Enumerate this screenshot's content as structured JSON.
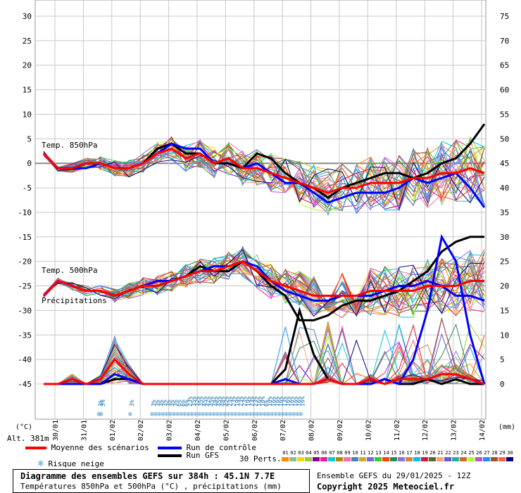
{
  "chart_data": {
    "type": "line",
    "title": "Diagramme des ensembles GEFS sur 384h : 45.1N 7.7E",
    "subtitle": "Températures 850hPa et 500hPa (°C) , précipitations (mm)",
    "y_left": {
      "label": "(°C)",
      "range": [
        -45,
        30
      ],
      "ticks": [
        30,
        25,
        20,
        15,
        10,
        5,
        0,
        -5,
        -10,
        -15,
        -20,
        -25,
        -30,
        -35,
        -40,
        -45
      ]
    },
    "y_right": {
      "label": "(mm)",
      "range": [
        0,
        75
      ],
      "ticks": [
        75,
        70,
        65,
        60,
        55,
        50,
        45,
        40,
        35,
        30,
        25,
        20,
        15,
        10,
        5,
        0
      ]
    },
    "altitude": "Alt. 381m",
    "date_labels": [
      "30/01",
      "31/01",
      "01/02",
      "02/02",
      "03/02",
      "04/02",
      "05/02",
      "06/02",
      "07/02",
      "08/02",
      "09/02",
      "10/02",
      "11/02",
      "12/02",
      "13/02",
      "14/02"
    ],
    "section_labels": [
      "Temp. 850hPa",
      "Temp. 500hPa",
      "Précipitations"
    ],
    "snow_risk": [
      {
        "t": 52,
        "pct": "3%"
      },
      {
        "t": 54,
        "pct": "3%"
      },
      {
        "t": 78,
        "pct": "3%"
      },
      {
        "t": 96,
        "pct": "3%"
      },
      {
        "t": 99,
        "pct": "3%"
      },
      {
        "t": 102,
        "pct": "3%"
      },
      {
        "t": 105,
        "pct": "3%"
      },
      {
        "t": 108,
        "pct": "3%"
      },
      {
        "t": 111,
        "pct": "3%"
      },
      {
        "t": 114,
        "pct": "3%"
      },
      {
        "t": 117,
        "pct": "6%"
      },
      {
        "t": 120,
        "pct": "6%"
      },
      {
        "t": 123,
        "pct": "6%"
      },
      {
        "t": 126,
        "pct": "23%"
      },
      {
        "t": 129,
        "pct": "35%"
      },
      {
        "t": 132,
        "pct": "32%"
      },
      {
        "t": 135,
        "pct": "35%"
      },
      {
        "t": 138,
        "pct": "45%"
      },
      {
        "t": 141,
        "pct": "42%"
      },
      {
        "t": 144,
        "pct": "45%"
      },
      {
        "t": 147,
        "pct": "48%"
      },
      {
        "t": 150,
        "pct": "45%"
      },
      {
        "t": 153,
        "pct": "48%"
      },
      {
        "t": 156,
        "pct": "42%"
      },
      {
        "t": 159,
        "pct": "23%"
      },
      {
        "t": 162,
        "pct": "23%"
      },
      {
        "t": 165,
        "pct": "19%"
      },
      {
        "t": 168,
        "pct": "23%"
      },
      {
        "t": 171,
        "pct": "23%"
      },
      {
        "t": 174,
        "pct": "19%"
      },
      {
        "t": 177,
        "pct": "23%"
      },
      {
        "t": 180,
        "pct": "23%"
      },
      {
        "t": 183,
        "pct": "16%"
      },
      {
        "t": 186,
        "pct": "10%"
      },
      {
        "t": 189,
        "pct": "6%"
      },
      {
        "t": 192,
        "pct": "10%"
      },
      {
        "t": 195,
        "pct": "16%"
      },
      {
        "t": 198,
        "pct": "16%"
      },
      {
        "t": 201,
        "pct": "16%"
      },
      {
        "t": 204,
        "pct": "13%"
      },
      {
        "t": 207,
        "pct": "16%"
      },
      {
        "t": 210,
        "pct": "16%"
      },
      {
        "t": 213,
        "pct": "16%"
      },
      {
        "t": 216,
        "pct": "16%"
      },
      {
        "t": 219,
        "pct": "16%"
      }
    ],
    "series": [
      {
        "name": "Moyenne des scénarios",
        "color": "#ff0000",
        "t850": [
          2,
          -1,
          -1,
          0,
          0,
          -1,
          -1,
          0,
          2,
          3,
          1,
          2,
          0,
          1,
          -1,
          -1,
          -2,
          -3,
          -4,
          -5,
          -6,
          -5,
          -5,
          -4,
          -4,
          -4,
          -3,
          -3,
          -2,
          -2,
          -1,
          -2
        ],
        "t500": [
          -27,
          -24,
          -25,
          -26,
          -26,
          -27,
          -26,
          -25,
          -25,
          -24,
          -23,
          -22,
          -22,
          -21,
          -20,
          -22,
          -24,
          -25,
          -26,
          -27,
          -27,
          -27,
          -27,
          -26,
          -26,
          -26,
          -26,
          -25,
          -25,
          -25,
          -24,
          -24
        ],
        "precip": [
          0,
          0,
          1,
          0,
          1,
          5,
          2,
          0,
          0,
          0,
          0,
          0,
          0,
          0,
          0,
          0,
          0,
          0,
          0,
          0,
          1,
          0,
          0,
          1,
          0,
          1,
          1,
          1,
          2,
          2,
          1,
          0
        ]
      },
      {
        "name": "Run de contrôle",
        "color": "#0000ff",
        "t850": [
          2,
          -1,
          -1,
          -1,
          0,
          -1,
          -1,
          0,
          2,
          4,
          3,
          3,
          0,
          1,
          -1,
          0,
          -2,
          -4,
          -4,
          -6,
          -8,
          -7,
          -6,
          -6,
          -6,
          -5,
          -3,
          -4,
          -3,
          -2,
          -5,
          -9
        ],
        "t500": [
          -27,
          -24,
          -25,
          -26,
          -26,
          -27,
          -26,
          -25,
          -24,
          -24,
          -23,
          -22,
          -21,
          -21,
          -20,
          -21,
          -24,
          -26,
          -27,
          -28,
          -28,
          -27,
          -27,
          -27,
          -26,
          -25,
          -25,
          -24,
          -25,
          -27,
          -27,
          -28
        ],
        "precip": [
          0,
          0,
          0,
          0,
          0,
          2,
          1,
          0,
          0,
          0,
          0,
          0,
          0,
          0,
          0,
          0,
          0,
          1,
          0,
          0,
          1,
          0,
          0,
          0,
          1,
          0,
          5,
          15,
          30,
          25,
          10,
          0
        ]
      },
      {
        "name": "Run GFS",
        "color": "#000000",
        "t850": [
          2,
          -1,
          -1,
          0,
          0,
          -1,
          -1,
          0,
          3,
          4,
          2,
          2,
          0,
          0,
          -1,
          2,
          1,
          -2,
          -4,
          -5,
          -7,
          -5,
          -4,
          -3,
          -2,
          -2,
          -3,
          -2,
          0,
          1,
          4,
          8
        ],
        "t500": [
          -27,
          -24,
          -25,
          -26,
          -26,
          -27,
          -26,
          -25,
          -25,
          -24,
          -23,
          -21,
          -22,
          -22,
          -20,
          -22,
          -25,
          -27,
          -32,
          -32,
          -31,
          -29,
          -28,
          -28,
          -27,
          -26,
          -24,
          -22,
          -18,
          -16,
          -15,
          -15
        ],
        "precip": [
          0,
          0,
          0,
          0,
          0,
          1,
          1,
          0,
          0,
          0,
          0,
          0,
          0,
          0,
          0,
          0,
          0,
          3,
          15,
          6,
          1,
          0,
          0,
          0,
          1,
          0,
          0,
          1,
          0,
          1,
          0,
          0
        ]
      }
    ],
    "legend": {
      "mean": "Moyenne des scénarios",
      "control": "Run de contrôle",
      "gfs": "Run GFS",
      "snow": "Risque neige",
      "perts": "30 Perts.",
      "pert_numbers": [
        "01",
        "02",
        "03",
        "04",
        "05",
        "06",
        "07",
        "08",
        "09",
        "10",
        "11",
        "12",
        "13",
        "14",
        "15",
        "16",
        "17",
        "18",
        "19",
        "20",
        "21",
        "22",
        "23",
        "24",
        "25",
        "26",
        "27",
        "28",
        "29",
        "30"
      ],
      "pert_colors": [
        "#ff8c00",
        "#8fbc8f",
        "#ffd700",
        "#9acd32",
        "#8b008b",
        "#ff1493",
        "#00ced1",
        "#b8860b",
        "#ff69b4",
        "#4682b4",
        "#daa520",
        "#7b68ee",
        "#32cd32",
        "#ff4500",
        "#2e8b57",
        "#9370db",
        "#cd853f",
        "#00bfff",
        "#dc143c",
        "#556b2f",
        "#ffa07a",
        "#6a5acd",
        "#20b2aa",
        "#d2691e",
        "#adff2f",
        "#ba55d3",
        "#1e90ff",
        "#a0522d",
        "#ff6347",
        "#000080"
      ]
    }
  },
  "footer": {
    "title": "Diagramme des ensembles GEFS sur 384h : 45.1N 7.7E",
    "subtitle": "Températures 850hPa et 500hPa (°C) , précipitations (mm)",
    "ensemble": "Ensemble GEFS du 29/01/2025 - 12Z",
    "copyright": "Copyright 2025 Meteociel.fr"
  }
}
